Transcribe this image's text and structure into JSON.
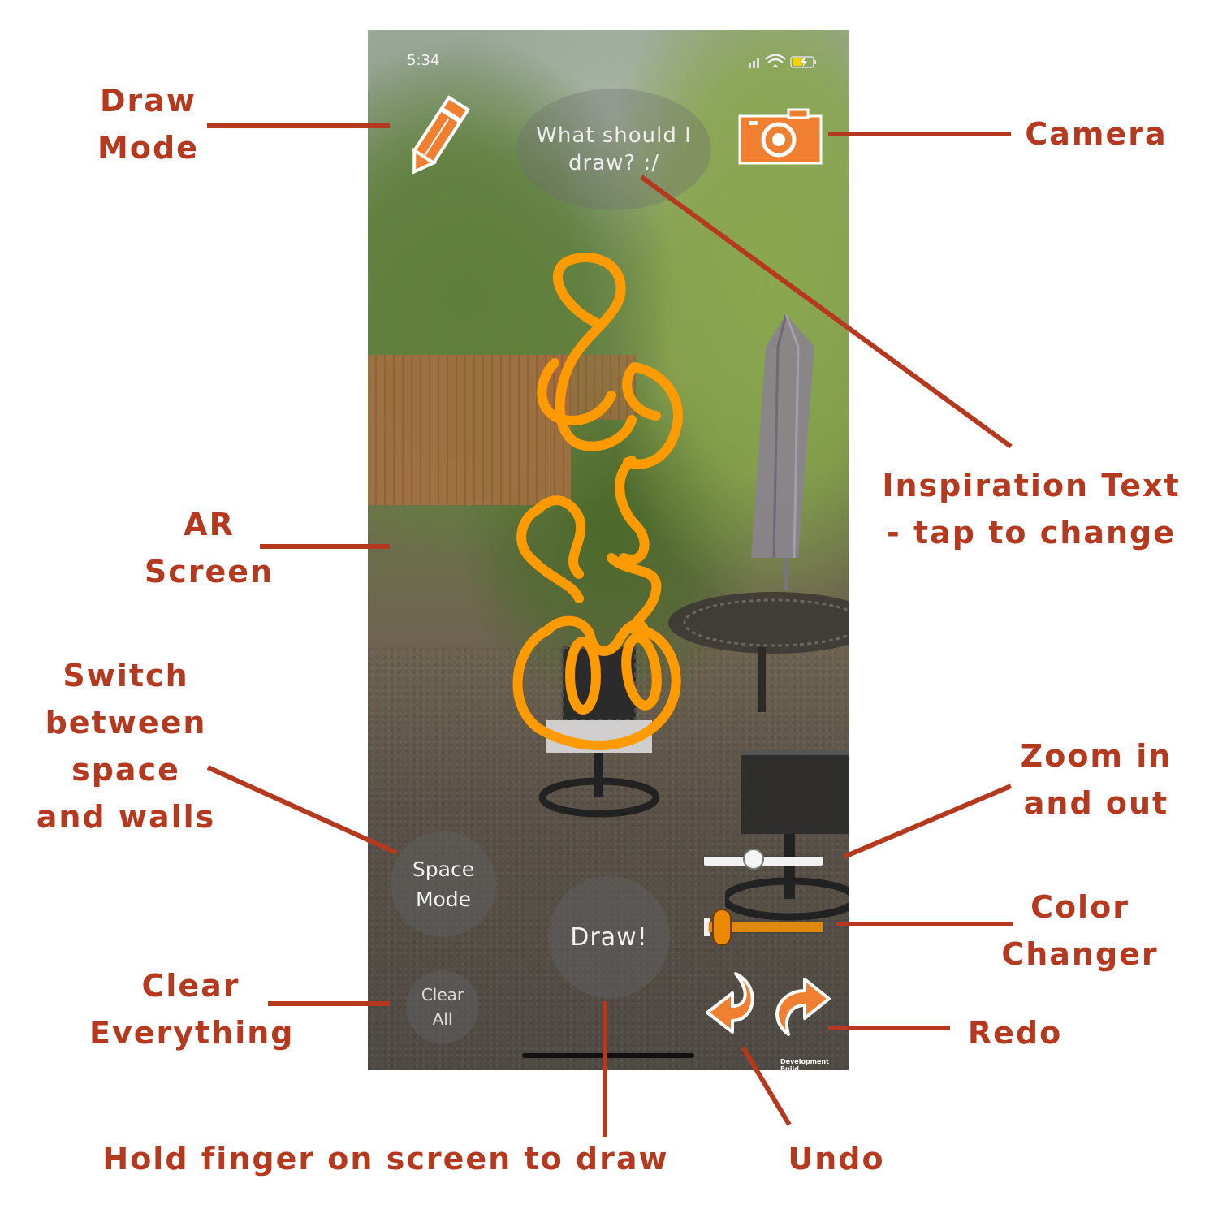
{
  "status_bar": {
    "time": "5:34"
  },
  "toolbar": {
    "draw_mode_icon": "pencil-icon",
    "camera_icon": "camera-icon"
  },
  "inspiration": {
    "text": "What should I draw? :/"
  },
  "controls": {
    "space_mode_label": "Space Mode",
    "draw_label": "Draw!",
    "clear_all_label": "Clear All",
    "zoom_level": 0.32,
    "color_value": 0.02,
    "undo_icon": "undo-arrow-icon",
    "redo_icon": "redo-arrow-icon"
  },
  "footer": {
    "build_label": "Development Build"
  },
  "colors": {
    "accent": "#f07f32",
    "stroke": "#ff9a00",
    "callout": "#b5391e"
  },
  "annotations": {
    "draw_mode": "Draw Mode",
    "camera": "Camera",
    "inspiration": "Inspiration Text - tap to change",
    "ar_screen": "AR Screen",
    "switch_mode": "Switch between space and walls",
    "zoom": "Zoom in and out",
    "color": "Color Changer",
    "clear": "Clear Everything",
    "redo": "Redo",
    "hold": "Hold finger on screen to draw",
    "undo": "Undo"
  }
}
